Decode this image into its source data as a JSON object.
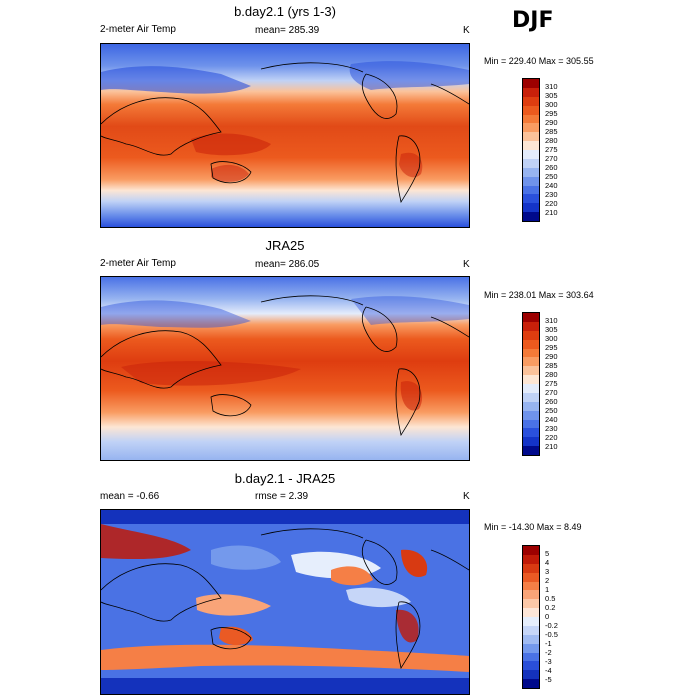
{
  "season": "DJF",
  "panels": [
    {
      "title": "b.day2.1 (yrs 1-3)",
      "left_label": "2-meter Air Temp",
      "center_label": "mean= 285.39",
      "units": "K",
      "minmax": "Min = 229.40 Max = 305.55",
      "colorbar_labels": [
        "310",
        "305",
        "300",
        "295",
        "290",
        "285",
        "280",
        "275",
        "270",
        "260",
        "250",
        "240",
        "230",
        "220",
        "210"
      ],
      "colorbar_colors": [
        "#9c0000",
        "#c8200a",
        "#de3d10",
        "#ec5a1e",
        "#f47a38",
        "#f99c62",
        "#fbc29a",
        "#fde6d4",
        "#e4ecfb",
        "#c0d2f6",
        "#97b4f0",
        "#6f93eb",
        "#4a72e6",
        "#2a50dc",
        "#1434c8",
        "#000a8c"
      ]
    },
    {
      "title": "JRA25",
      "left_label": "2-meter Air Temp",
      "center_label": "mean= 286.05",
      "units": "K",
      "minmax": "Min = 238.01 Max = 303.64",
      "colorbar_labels": [
        "310",
        "305",
        "300",
        "295",
        "290",
        "285",
        "280",
        "275",
        "270",
        "260",
        "250",
        "240",
        "230",
        "220",
        "210"
      ],
      "colorbar_colors": [
        "#9c0000",
        "#c8200a",
        "#de3d10",
        "#ec5a1e",
        "#f47a38",
        "#f99c62",
        "#fbc29a",
        "#fde6d4",
        "#e4ecfb",
        "#c0d2f6",
        "#97b4f0",
        "#6f93eb",
        "#4a72e6",
        "#2a50dc",
        "#1434c8",
        "#000a8c"
      ]
    },
    {
      "title": "b.day2.1 - JRA25",
      "left_label": "mean =  -0.66",
      "center_label": "rmse =   2.39",
      "units": "K",
      "minmax": "Min = -14.30 Max =   8.49",
      "colorbar_labels": [
        "5",
        "4",
        "3",
        "2",
        "1",
        "0.5",
        "0.2",
        "0",
        "-0.2",
        "-0.5",
        "-1",
        "-2",
        "-3",
        "-4",
        "-5"
      ],
      "colorbar_colors": [
        "#9c0000",
        "#c01a08",
        "#d83a12",
        "#ea5a24",
        "#f57f46",
        "#f9a478",
        "#fcc8a8",
        "#fde6d8",
        "#e6eefc",
        "#c6d6f8",
        "#a0bbf2",
        "#7499ec",
        "#4a72e4",
        "#2a4fd8",
        "#1432bc",
        "#000a8c"
      ]
    }
  ]
}
